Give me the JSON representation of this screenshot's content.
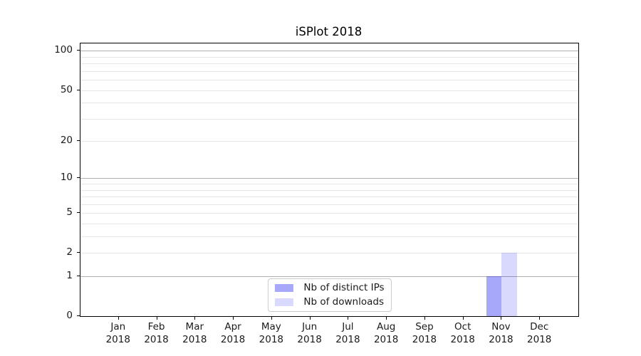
{
  "chart_data": {
    "type": "bar",
    "title": "iSPlot 2018",
    "xlabel": "",
    "ylabel": "",
    "categories": [
      "Jan",
      "Feb",
      "Mar",
      "Apr",
      "May",
      "Jun",
      "Jul",
      "Aug",
      "Sep",
      "Oct",
      "Nov",
      "Dec"
    ],
    "x_year_label": "2018",
    "series": [
      {
        "name": "Nb of distinct IPs",
        "color": "#0000F057",
        "values": [
          0,
          0,
          0,
          0,
          0,
          0,
          0,
          0,
          0,
          0,
          1,
          0
        ]
      },
      {
        "name": "Nb of downloads",
        "color": "#0000F026",
        "values": [
          0,
          0,
          0,
          0,
          0,
          0,
          0,
          0,
          0,
          0,
          2,
          0
        ]
      }
    ],
    "yscale": "log1p",
    "ylim": [
      0,
      114
    ],
    "yticks": [
      0,
      1,
      2,
      5,
      10,
      20,
      50,
      100
    ],
    "major_gridlines": [
      1,
      10,
      100
    ],
    "minor_gridlines": [
      2,
      3,
      4,
      5,
      6,
      7,
      8,
      9,
      20,
      30,
      40,
      50,
      60,
      70,
      80,
      90
    ],
    "grid": true,
    "legend_position": "lower center",
    "colors": {
      "spine": "#000000",
      "major_grid": "#b0b0b0",
      "minor_grid": "#e6e6e6",
      "text": "#1a1a1a",
      "legend_border": "#cccccc"
    }
  }
}
